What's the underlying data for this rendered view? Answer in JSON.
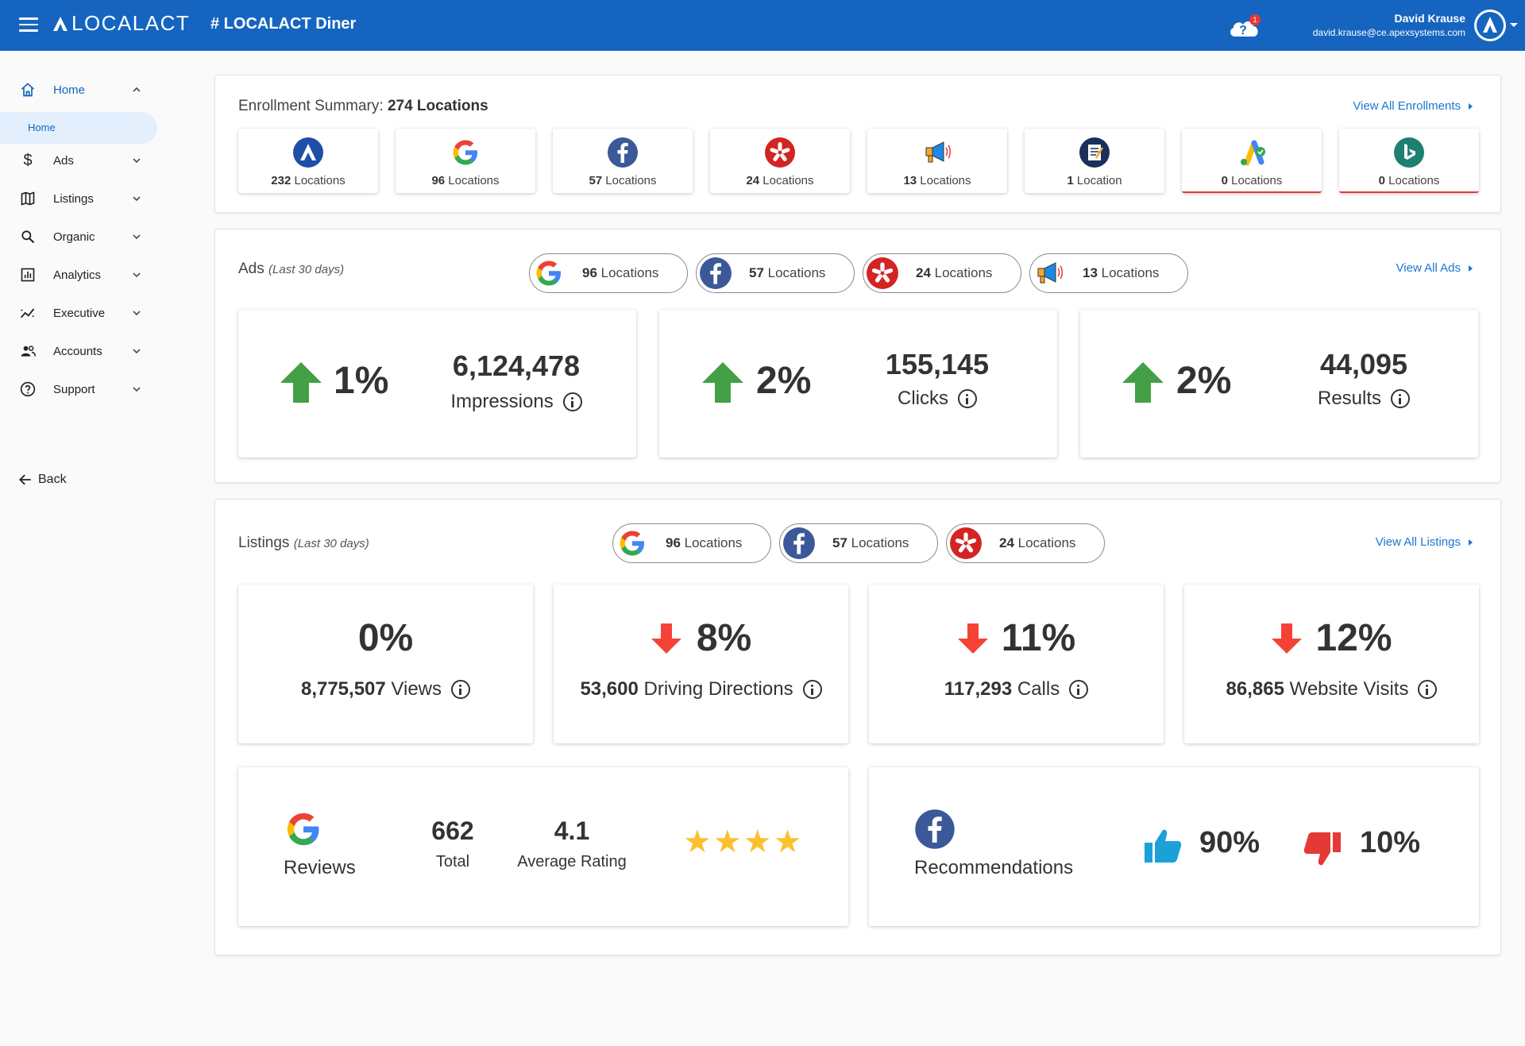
{
  "header": {
    "logo_text": "LOCALACT",
    "store_title": "# LOCALACT Diner",
    "help_badge": "1",
    "user_name": "David Krause",
    "user_email": "david.krause@ce.apexsystems.com"
  },
  "sidebar": {
    "items": [
      {
        "label": "Home"
      },
      {
        "label": "Ads"
      },
      {
        "label": "Listings"
      },
      {
        "label": "Organic"
      },
      {
        "label": "Analytics"
      },
      {
        "label": "Executive"
      },
      {
        "label": "Accounts"
      },
      {
        "label": "Support"
      }
    ],
    "sub_item": "Home",
    "back": "Back"
  },
  "enrollment": {
    "title": "Enrollment Summary:",
    "total": "274 Locations",
    "view_all": "View All Enrollments",
    "cards": [
      {
        "count": "232",
        "unit": " Locations",
        "icon": "localact-icon"
      },
      {
        "count": "96",
        "unit": " Locations",
        "icon": "google-icon"
      },
      {
        "count": "57",
        "unit": " Locations",
        "icon": "facebook-icon"
      },
      {
        "count": "24",
        "unit": " Locations",
        "icon": "yelp-icon"
      },
      {
        "count": "13",
        "unit": " Locations",
        "icon": "megaphone-icon"
      },
      {
        "count": "1",
        "unit": " Location",
        "icon": "notepad-icon"
      },
      {
        "count": "0",
        "unit": " Locations",
        "icon": "google-ads-icon"
      },
      {
        "count": "0",
        "unit": " Locations",
        "icon": "bing-icon"
      }
    ]
  },
  "ads": {
    "title": "Ads",
    "period": "(Last 30 days)",
    "view_all": "View All Ads",
    "pills": [
      {
        "count": "96",
        "unit": " Locations"
      },
      {
        "count": "57",
        "unit": " Locations"
      },
      {
        "count": "24",
        "unit": " Locations"
      },
      {
        "count": "13",
        "unit": " Locations"
      }
    ],
    "metrics": [
      {
        "change": "1%",
        "value": "6,124,478",
        "label": "Impressions",
        "trend": "up"
      },
      {
        "change": "2%",
        "value": "155,145",
        "label": "Clicks",
        "trend": "up"
      },
      {
        "change": "2%",
        "value": "44,095",
        "label": "Results",
        "trend": "up"
      }
    ]
  },
  "listings": {
    "title": "Listings",
    "period": "(Last 30 days)",
    "view_all": "View All Listings",
    "pills": [
      {
        "count": "96",
        "unit": " Locations"
      },
      {
        "count": "57",
        "unit": " Locations"
      },
      {
        "count": "24",
        "unit": " Locations"
      }
    ],
    "metrics": [
      {
        "change": "0%",
        "value": "8,775,507",
        "label": " Views",
        "trend": "none"
      },
      {
        "change": "8%",
        "value": "53,600",
        "label": " Driving Directions",
        "trend": "down"
      },
      {
        "change": "11%",
        "value": "117,293",
        "label": " Calls",
        "trend": "down"
      },
      {
        "change": "12%",
        "value": "86,865",
        "label": " Website Visits",
        "trend": "down"
      }
    ]
  },
  "reviews": {
    "label": "Reviews",
    "total_value": "662",
    "total_label": "Total",
    "rating_value": "4.1",
    "rating_label": "Average Rating",
    "stars": "★★★★"
  },
  "recommendations": {
    "label": "Recommendations",
    "positive": "90%",
    "negative": "10%"
  },
  "colors": {
    "brand_blue": "#1565c0",
    "up_green": "#43a047",
    "down_red": "#f44336",
    "star_gold": "#fbc02d",
    "thumb_blue": "#1ba1d8"
  }
}
